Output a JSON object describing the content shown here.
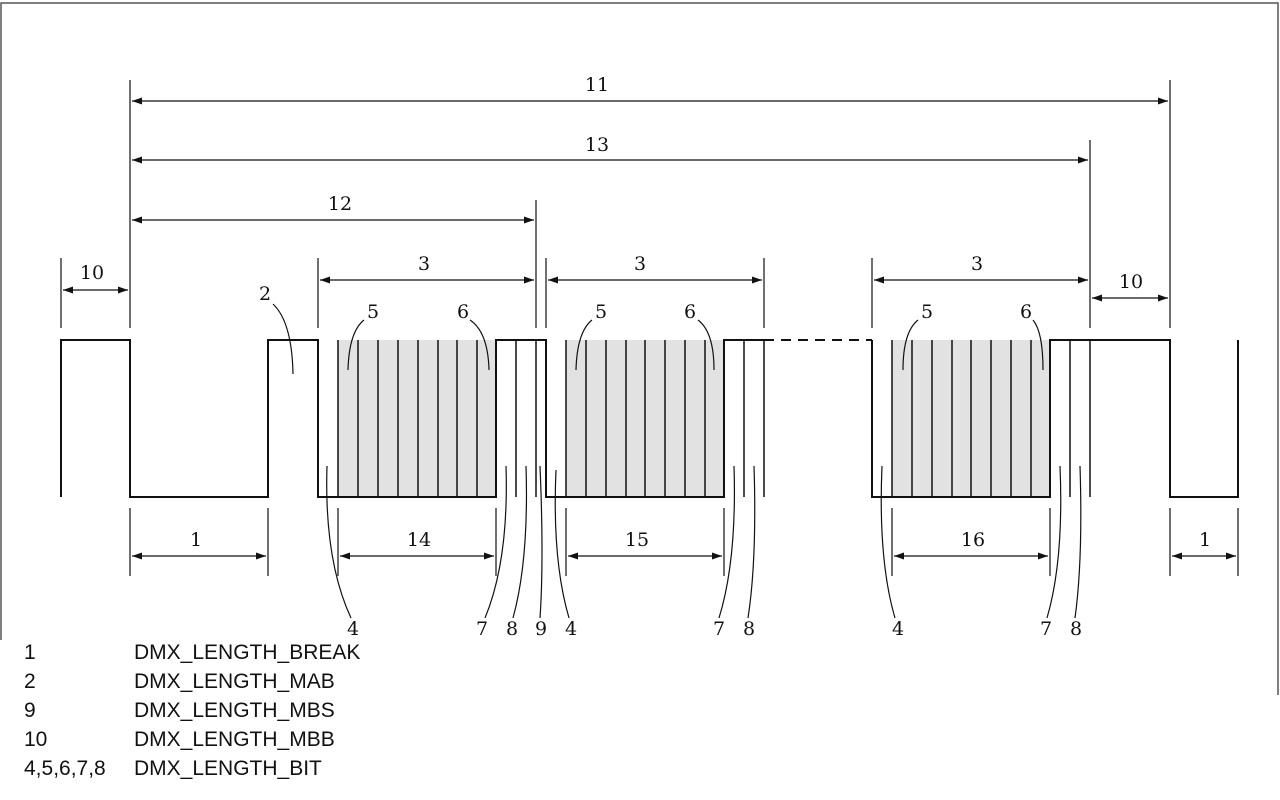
{
  "diagram": {
    "labels": {
      "l1a": "1",
      "l1b": "1",
      "l2": "2",
      "l3a": "3",
      "l3b": "3",
      "l3c": "3",
      "l4a": "4",
      "l4b": "4",
      "l4c": "4",
      "l5a": "5",
      "l5b": "5",
      "l5c": "5",
      "l6a": "6",
      "l6b": "6",
      "l6c": "6",
      "l7a": "7",
      "l7b": "7",
      "l7c": "7",
      "l8a": "8",
      "l8b": "8",
      "l8c": "8",
      "l9": "9",
      "l10a": "10",
      "l10b": "10",
      "l11": "11",
      "l12": "12",
      "l13": "13",
      "l14": "14",
      "l15": "15",
      "l16": "16"
    },
    "colors": {
      "line": "#111111",
      "bit_fill": "#e2e2e2",
      "frame": "#555555"
    }
  },
  "legend": [
    {
      "key": "1",
      "value": "DMX_LENGTH_BREAK"
    },
    {
      "key": "2",
      "value": "DMX_LENGTH_MAB"
    },
    {
      "key": "9",
      "value": "DMX_LENGTH_MBS"
    },
    {
      "key": "10",
      "value": "DMX_LENGTH_MBB"
    },
    {
      "key": "4,5,6,7,8",
      "value": "DMX_LENGTH_BIT"
    }
  ]
}
